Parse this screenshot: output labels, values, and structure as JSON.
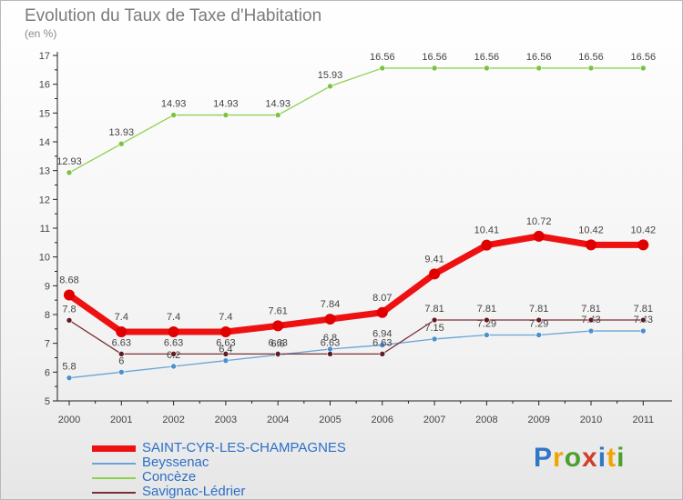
{
  "title": "Evolution du Taux de Taxe d'Habitation",
  "subtitle": "(en %)",
  "brand": {
    "letters": [
      "P",
      "r",
      "o",
      "x",
      "i",
      "t",
      "i"
    ],
    "colors": [
      "#2f78c8",
      "#f0a400",
      "#4c9f2b",
      "#d23c2a",
      "#2f78c8",
      "#f0a400",
      "#4c9f2b"
    ]
  },
  "chart_data": {
    "type": "line",
    "title": "Evolution du Taux de Taxe d'Habitation",
    "ylabel": "(en %)",
    "x": [
      "2000",
      "2001",
      "2002",
      "2003",
      "2004",
      "2005",
      "2006",
      "2007",
      "2008",
      "2009",
      "2010",
      "2011"
    ],
    "ylim": [
      5,
      17
    ],
    "yticks": [
      5,
      6,
      7,
      8,
      9,
      10,
      11,
      12,
      13,
      14,
      15,
      16,
      17
    ],
    "grid": false,
    "legend_position": "bottom-left",
    "series": [
      {
        "name": "Concèze",
        "color": "#8fd14f",
        "marker": "#7cc242",
        "width": 1.3,
        "values": [
          12.93,
          13.93,
          14.93,
          14.93,
          14.93,
          15.93,
          16.56,
          16.56,
          16.56,
          16.56,
          16.56,
          16.56
        ],
        "labels": [
          "12.93",
          "13.93",
          "14.93",
          "14.93",
          "14.93",
          "15.93",
          "16.56",
          "16.56",
          "16.56",
          "16.56",
          "16.56",
          "16.56"
        ]
      },
      {
        "name": "Beyssenac",
        "color": "#6aa3d5",
        "marker": "#4a8fcf",
        "width": 1.3,
        "values": [
          5.8,
          6,
          6.2,
          6.4,
          6.6,
          6.8,
          6.94,
          7.15,
          7.29,
          7.29,
          7.43,
          7.43
        ],
        "labels": [
          "5.8",
          "6",
          "6.2",
          "6.4",
          "6.6",
          "6.8",
          "6.94",
          "7.15",
          "7.29",
          "7.29",
          "7.43",
          "7.43"
        ]
      },
      {
        "name": "Savignac-Lédrier",
        "color": "#7b2f35",
        "marker": "#5e1c22",
        "width": 1.3,
        "values": [
          7.8,
          6.63,
          6.63,
          6.63,
          6.63,
          6.63,
          6.63,
          7.81,
          7.81,
          7.81,
          7.81,
          7.81
        ],
        "labels": [
          "7.8",
          "6.63",
          "6.63",
          "6.63",
          "6.63",
          "6.63",
          "6.63",
          "7.81",
          "7.81",
          "7.81",
          "7.81",
          "7.81"
        ]
      },
      {
        "name": "SAINT-CYR-LES-CHAMPAGNES",
        "color": "#ee1111",
        "marker": "#e00000",
        "width": 7,
        "values": [
          8.68,
          7.4,
          7.4,
          7.4,
          7.61,
          7.84,
          8.07,
          9.41,
          10.41,
          10.72,
          10.42,
          10.42
        ],
        "labels": [
          "8.68",
          "7.4",
          "7.4",
          "7.4",
          "7.61",
          "7.84",
          "8.07",
          "9.41",
          "10.41",
          "10.72",
          "10.42",
          "10.42"
        ]
      }
    ],
    "legend": [
      "SAINT-CYR-LES-CHAMPAGNES",
      "Beyssenac",
      "Concèze",
      "Savignac-Lédrier"
    ]
  }
}
